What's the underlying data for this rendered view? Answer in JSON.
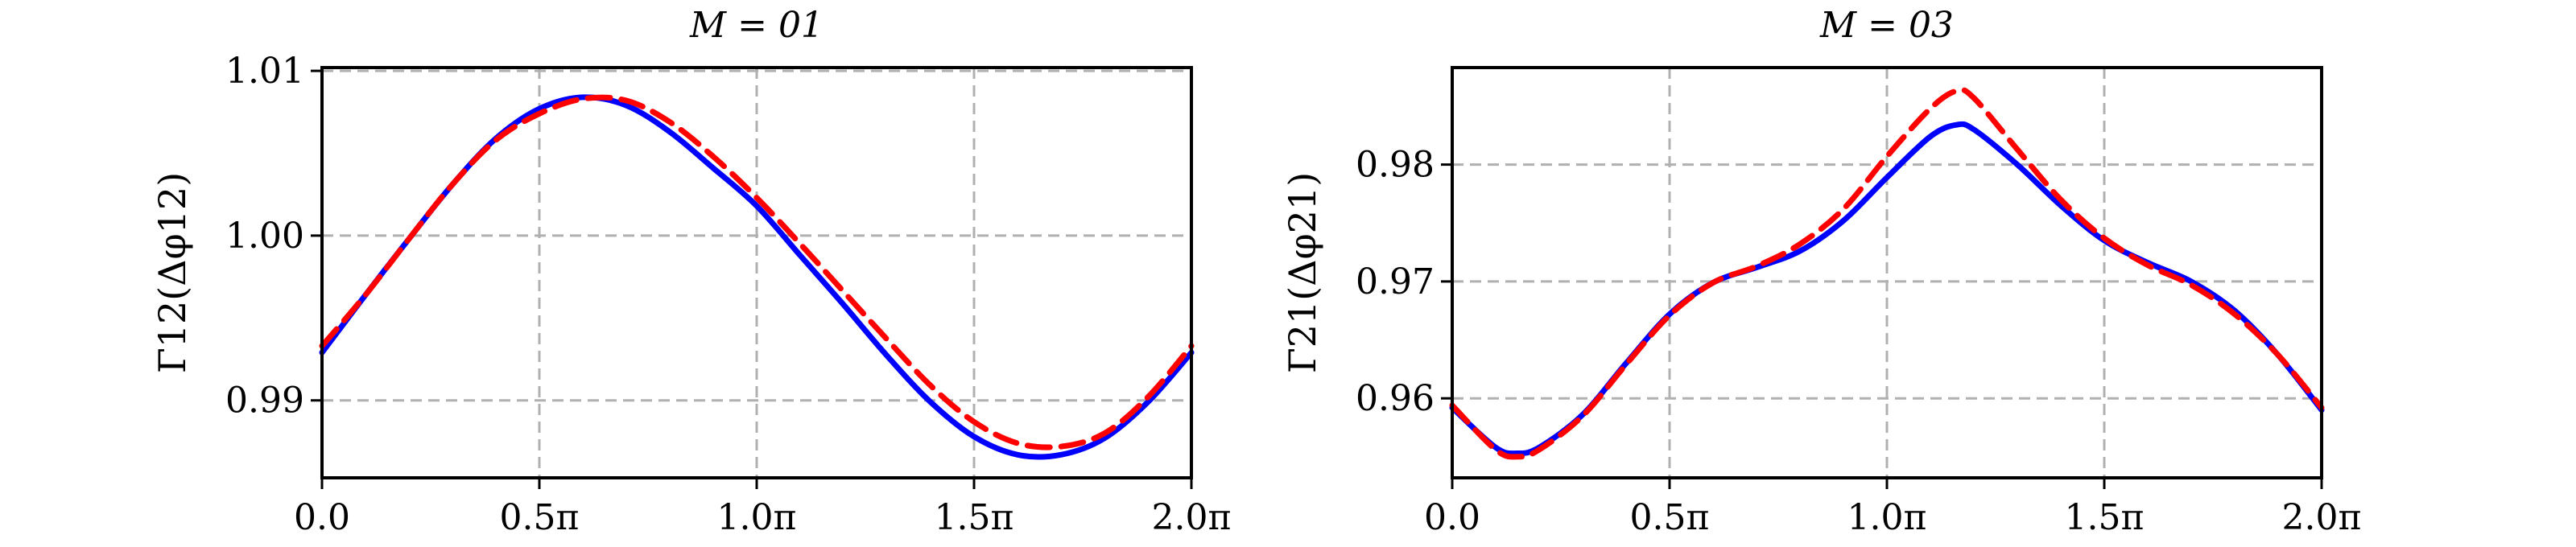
{
  "chart_data": [
    {
      "type": "line",
      "title": "M = 01",
      "ylabel": "Γ12(Δφ12)",
      "xlim": [
        0,
        2
      ],
      "ylim": [
        0.9853,
        1.0102
      ],
      "grid": true,
      "xticks": [
        0,
        0.5,
        1.0,
        1.5,
        2.0
      ],
      "xtick_labels": [
        "0.0",
        "0.5π",
        "1.0π",
        "1.5π",
        "2.0π"
      ],
      "yticks": [
        0.99,
        1.0,
        1.01
      ],
      "ytick_labels": [
        "0.99",
        "1.00",
        "1.01"
      ],
      "x": [
        0,
        0.1,
        0.2,
        0.3,
        0.4,
        0.5,
        0.6,
        0.7,
        0.8,
        0.9,
        1.0,
        1.1,
        1.2,
        1.3,
        1.4,
        1.5,
        1.6,
        1.7,
        1.8,
        1.9,
        2.0
      ],
      "series": [
        {
          "color": "#0000ff",
          "style": "solid",
          "values": [
            0.9929,
            0.9964,
            0.9998,
            1.0031,
            1.0059,
            1.0077,
            1.0084,
            1.0079,
            1.0063,
            1.0041,
            1.0018,
            0.9988,
            0.9958,
            0.9927,
            0.9899,
            0.9878,
            0.9867,
            0.9867,
            0.9877,
            0.9899,
            0.9929
          ]
        },
        {
          "color": "#ff0000",
          "style": "dashed",
          "values": [
            0.9933,
            0.9964,
            0.9998,
            1.0031,
            1.0058,
            1.0074,
            1.0083,
            1.0082,
            1.0069,
            1.0048,
            1.0023,
            0.9995,
            0.9966,
            0.9937,
            0.9909,
            0.9887,
            0.9874,
            0.9872,
            0.988,
            0.9902,
            0.9933
          ]
        }
      ]
    },
    {
      "type": "line",
      "title": "M = 03",
      "ylabel": "Γ21(Δφ21)",
      "xlim": [
        0,
        2
      ],
      "ylim": [
        0.9532,
        0.9883
      ],
      "grid": true,
      "xticks": [
        0,
        0.5,
        1.0,
        1.5,
        2.0
      ],
      "xtick_labels": [
        "0.0",
        "0.5π",
        "1.0π",
        "1.5π",
        "2.0π"
      ],
      "yticks": [
        0.96,
        0.97,
        0.98
      ],
      "ytick_labels": [
        "0.96",
        "0.97",
        "0.98"
      ],
      "x": [
        0,
        0.1,
        0.15,
        0.2,
        0.3,
        0.4,
        0.5,
        0.6,
        0.7,
        0.8,
        0.9,
        1.0,
        1.1,
        1.16,
        1.2,
        1.3,
        1.4,
        1.5,
        1.6,
        1.7,
        1.8,
        1.9,
        2.0
      ],
      "series": [
        {
          "color": "#0000ff",
          "style": "solid",
          "values": [
            0.9592,
            0.9558,
            0.9553,
            0.9558,
            0.9586,
            0.963,
            0.9672,
            0.9699,
            0.9712,
            0.9726,
            0.9752,
            0.9789,
            0.9824,
            0.9834,
            0.983,
            0.98,
            0.9765,
            0.9735,
            0.9716,
            0.97,
            0.9675,
            0.9637,
            0.959
          ]
        },
        {
          "color": "#ff0000",
          "style": "dashed",
          "values": [
            0.9594,
            0.9556,
            0.955,
            0.9556,
            0.9585,
            0.9629,
            0.9671,
            0.9699,
            0.9713,
            0.9732,
            0.9762,
            0.9807,
            0.9848,
            0.9863,
            0.9857,
            0.9813,
            0.977,
            0.9737,
            0.9714,
            0.9697,
            0.9672,
            0.9637,
            0.9592
          ]
        }
      ]
    }
  ]
}
